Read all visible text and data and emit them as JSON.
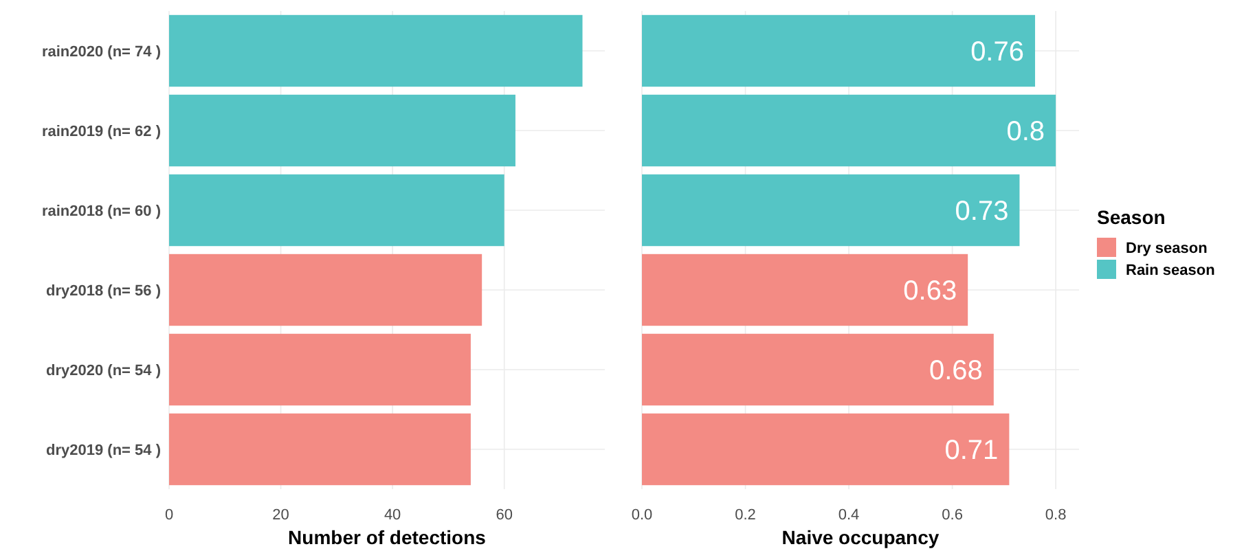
{
  "chart_data": [
    {
      "type": "bar",
      "orientation": "horizontal",
      "xlabel": "Number of detections",
      "categories": [
        "rain2020 (n= 74 )",
        "rain2019 (n= 62 )",
        "rain2018 (n= 60 )",
        "dry2018 (n= 56 )",
        "dry2020 (n= 54 )",
        "dry2019 (n= 54 )"
      ],
      "series": [
        {
          "color": "#55c5c5",
          "values": [
            74,
            62,
            60,
            null,
            null,
            null
          ]
        },
        {
          "color": "#f38b84",
          "values": [
            null,
            null,
            null,
            56,
            54,
            54
          ]
        }
      ],
      "xlim": [
        0,
        78
      ],
      "xticks": [
        0,
        20,
        40,
        60
      ],
      "grid": true
    },
    {
      "type": "bar",
      "orientation": "horizontal",
      "xlabel": "Naive occupancy",
      "legend_title": "Season",
      "categories": [
        null,
        null,
        null,
        null,
        null,
        null
      ],
      "series": [
        {
          "name": "Dry season",
          "color": "#f38b84",
          "values": [
            null,
            null,
            null,
            0.63,
            0.68,
            0.71
          ]
        },
        {
          "name": "Rain season",
          "color": "#55c5c5",
          "values": [
            0.76,
            0.8,
            0.73,
            null,
            null,
            null
          ]
        }
      ],
      "xlim": [
        0,
        0.845
      ],
      "xticks": [
        {
          "value": 0,
          "label": "0.0"
        },
        {
          "value": 0.2,
          "label": "0.2"
        },
        {
          "value": 0.4,
          "label": "0.4"
        },
        {
          "value": 0.6,
          "label": "0.6"
        },
        {
          "value": 0.8,
          "label": "0.8"
        }
      ],
      "grid": true,
      "data_labels": true,
      "tick_labels": "x",
      "legend": "right"
    }
  ]
}
